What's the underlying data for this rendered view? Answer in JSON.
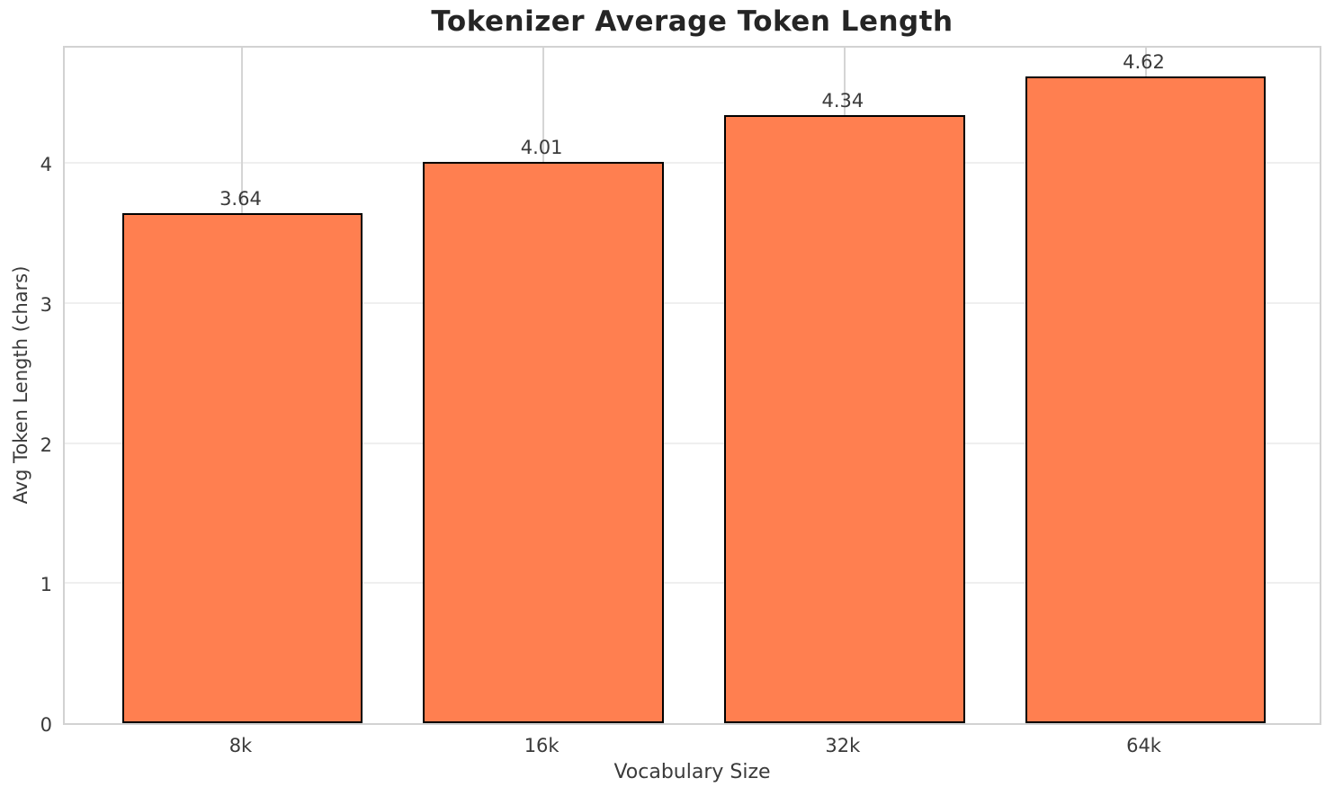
{
  "chart_data": {
    "type": "bar",
    "title": "Tokenizer Average Token Length",
    "xlabel": "Vocabulary Size",
    "ylabel": "Avg Token Length (chars)",
    "categories": [
      "8k",
      "16k",
      "32k",
      "64k"
    ],
    "values": [
      3.64,
      4.01,
      4.34,
      4.62
    ],
    "value_labels": [
      "3.64",
      "4.01",
      "4.34",
      "4.62"
    ],
    "yticks": [
      "0",
      "1",
      "2",
      "3",
      "4"
    ],
    "ylim": [
      0,
      4.85
    ],
    "xlim": [
      -0.59,
      3.59
    ],
    "bar_width": 0.8,
    "grid": "both",
    "legend": "none",
    "colors": {
      "bar_fill": "#FF7F50",
      "bar_edge": "#000000",
      "spine": "#d2d2d2",
      "h_gridline": "#efefef",
      "v_gridline": "#d5d5d5",
      "title_text": "#252525",
      "label_text": "#3a3a3a",
      "background": "#ffffff"
    }
  }
}
